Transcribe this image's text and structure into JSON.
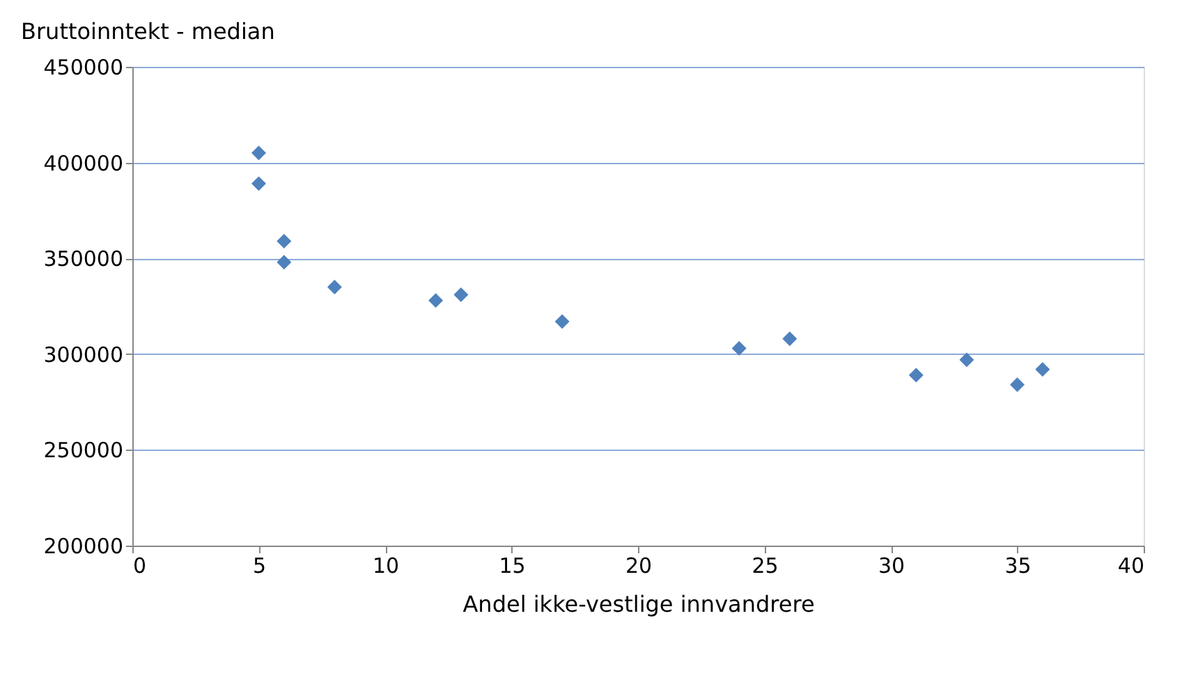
{
  "chart_data": {
    "type": "scatter",
    "ylabel": "Bruttoinntekt - median",
    "xlabel": "Andel ikke-vestlige innvandrere",
    "x": [
      5,
      5,
      6,
      6,
      8,
      12,
      13,
      17,
      24,
      26,
      31,
      33,
      35,
      36
    ],
    "series": [
      {
        "color": "#4f81bd",
        "values": [
          405000,
          389000,
          359000,
          348000,
          335000,
          328000,
          331000,
          317000,
          303000,
          308000,
          289000,
          297000,
          284000,
          292000
        ]
      }
    ],
    "xlim": [
      0,
      40
    ],
    "xticks": [
      0,
      5,
      10,
      15,
      20,
      25,
      30,
      35,
      40
    ],
    "ylim": [
      200000,
      450000
    ],
    "yticks": [
      200000,
      250000,
      300000,
      350000,
      400000,
      450000
    ],
    "grid": "y",
    "marker": "diamond"
  }
}
